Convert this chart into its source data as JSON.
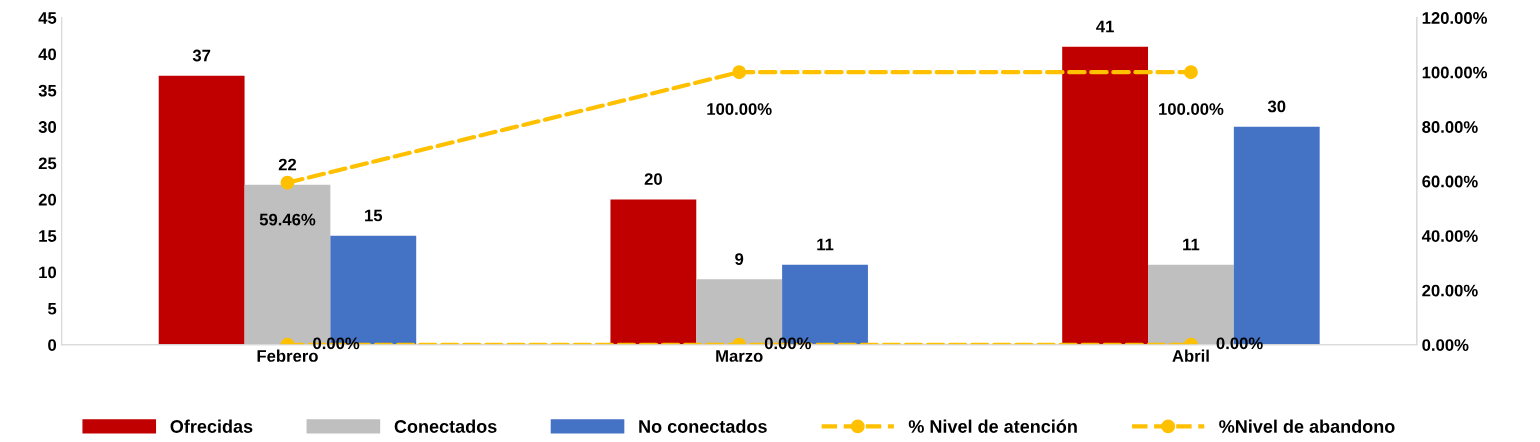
{
  "chart_data": {
    "type": "bar",
    "categories": [
      "Febrero",
      "Marzo",
      "Abril"
    ],
    "series": [
      {
        "name": "Ofrecidas",
        "color": "#c00000",
        "values": [
          37,
          20,
          41
        ],
        "value_labels": [
          "37",
          "20",
          "41"
        ]
      },
      {
        "name": "Conectados",
        "color": "#bfbfbf",
        "values": [
          22,
          9,
          11
        ],
        "value_labels": [
          "22",
          "9",
          "11"
        ]
      },
      {
        "name": "No conectados",
        "color": "#4472c4",
        "values": [
          15,
          11,
          30
        ],
        "value_labels": [
          "15",
          "11",
          "30"
        ]
      },
      {
        "name": "% Nivel de atención",
        "type": "line",
        "axis": "y2",
        "color": "#ffc000",
        "values": [
          59.46,
          100,
          100
        ],
        "value_labels": [
          "59.46%",
          "100.00%",
          "100.00%"
        ],
        "marker": "circle",
        "line_style": "dashed"
      },
      {
        "name": "%Nivel de abandono",
        "type": "line",
        "axis": "y2",
        "color": "#ffc000",
        "values": [
          0,
          0,
          0
        ],
        "value_labels": [
          "0.00%",
          "0.00%",
          "0.00%"
        ],
        "marker": "circle",
        "line_style": "dashed"
      }
    ],
    "ylim": [
      0,
      45
    ],
    "yticks": [
      0,
      5,
      10,
      15,
      20,
      25,
      30,
      35,
      40,
      45
    ],
    "y2lim": [
      0,
      120
    ],
    "y2ticks": [
      {
        "value": 0,
        "label": "0.00%"
      },
      {
        "value": 20,
        "label": "20.00%"
      },
      {
        "value": 40,
        "label": "40.00%"
      },
      {
        "value": 60,
        "label": "60.00%"
      },
      {
        "value": 80,
        "label": "80.00%"
      },
      {
        "value": 100,
        "label": "100.00%"
      },
      {
        "value": 120,
        "label": "120.00%"
      }
    ],
    "grid": false,
    "legend": "bottom"
  }
}
